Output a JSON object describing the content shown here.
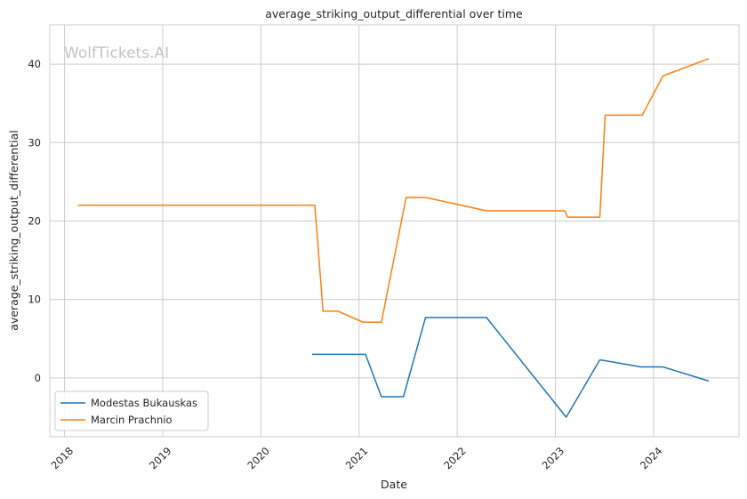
{
  "chart_data": {
    "type": "line",
    "title": "average_striking_output_differential over time",
    "xlabel": "Date",
    "ylabel": "average_striking_output_differential",
    "watermark": "WolfTickets.AI",
    "xlim": [
      2017.85,
      2024.87
    ],
    "ylim": [
      -7.5,
      45
    ],
    "x_ticks": [
      2018,
      2019,
      2020,
      2021,
      2022,
      2023,
      2024
    ],
    "x_tick_labels": [
      "2018",
      "2019",
      "2020",
      "2021",
      "2022",
      "2023",
      "2024"
    ],
    "y_ticks": [
      0,
      10,
      20,
      30,
      40
    ],
    "y_tick_labels": [
      "0",
      "10",
      "20",
      "30",
      "40"
    ],
    "grid": true,
    "legend_position": "lower-left",
    "series": [
      {
        "name": "Modestas Bukauskas",
        "color": "#1f77b4",
        "points": [
          {
            "x": "2020-07-10",
            "y": 3.0
          },
          {
            "x": "2021-01-25",
            "y": 3.0
          },
          {
            "x": "2021-03-25",
            "y": -2.4
          },
          {
            "x": "2021-06-15",
            "y": -2.4
          },
          {
            "x": "2021-09-05",
            "y": 7.7
          },
          {
            "x": "2022-04-20",
            "y": 7.7
          },
          {
            "x": "2023-02-10",
            "y": -5.0
          },
          {
            "x": "2023-06-15",
            "y": 2.3
          },
          {
            "x": "2023-07-05",
            "y": 2.2
          },
          {
            "x": "2023-11-15",
            "y": 1.4
          },
          {
            "x": "2024-02-05",
            "y": 1.4
          },
          {
            "x": "2024-07-25",
            "y": -0.4
          }
        ]
      },
      {
        "name": "Marcin Prachnio",
        "color": "#ff7f0e",
        "points": [
          {
            "x": "2018-02-20",
            "y": 22.0
          },
          {
            "x": "2020-07-20",
            "y": 22.0
          },
          {
            "x": "2020-08-20",
            "y": 8.5
          },
          {
            "x": "2020-10-15",
            "y": 8.5
          },
          {
            "x": "2021-01-15",
            "y": 7.1
          },
          {
            "x": "2021-03-25",
            "y": 7.1
          },
          {
            "x": "2021-06-25",
            "y": 23.0
          },
          {
            "x": "2021-09-05",
            "y": 23.0
          },
          {
            "x": "2022-04-20",
            "y": 21.3
          },
          {
            "x": "2023-02-05",
            "y": 21.3
          },
          {
            "x": "2023-02-15",
            "y": 20.5
          },
          {
            "x": "2023-06-15",
            "y": 20.5
          },
          {
            "x": "2023-07-05",
            "y": 33.5
          },
          {
            "x": "2023-11-20",
            "y": 33.5
          },
          {
            "x": "2024-02-05",
            "y": 38.5
          },
          {
            "x": "2024-07-25",
            "y": 40.7
          }
        ]
      }
    ]
  }
}
